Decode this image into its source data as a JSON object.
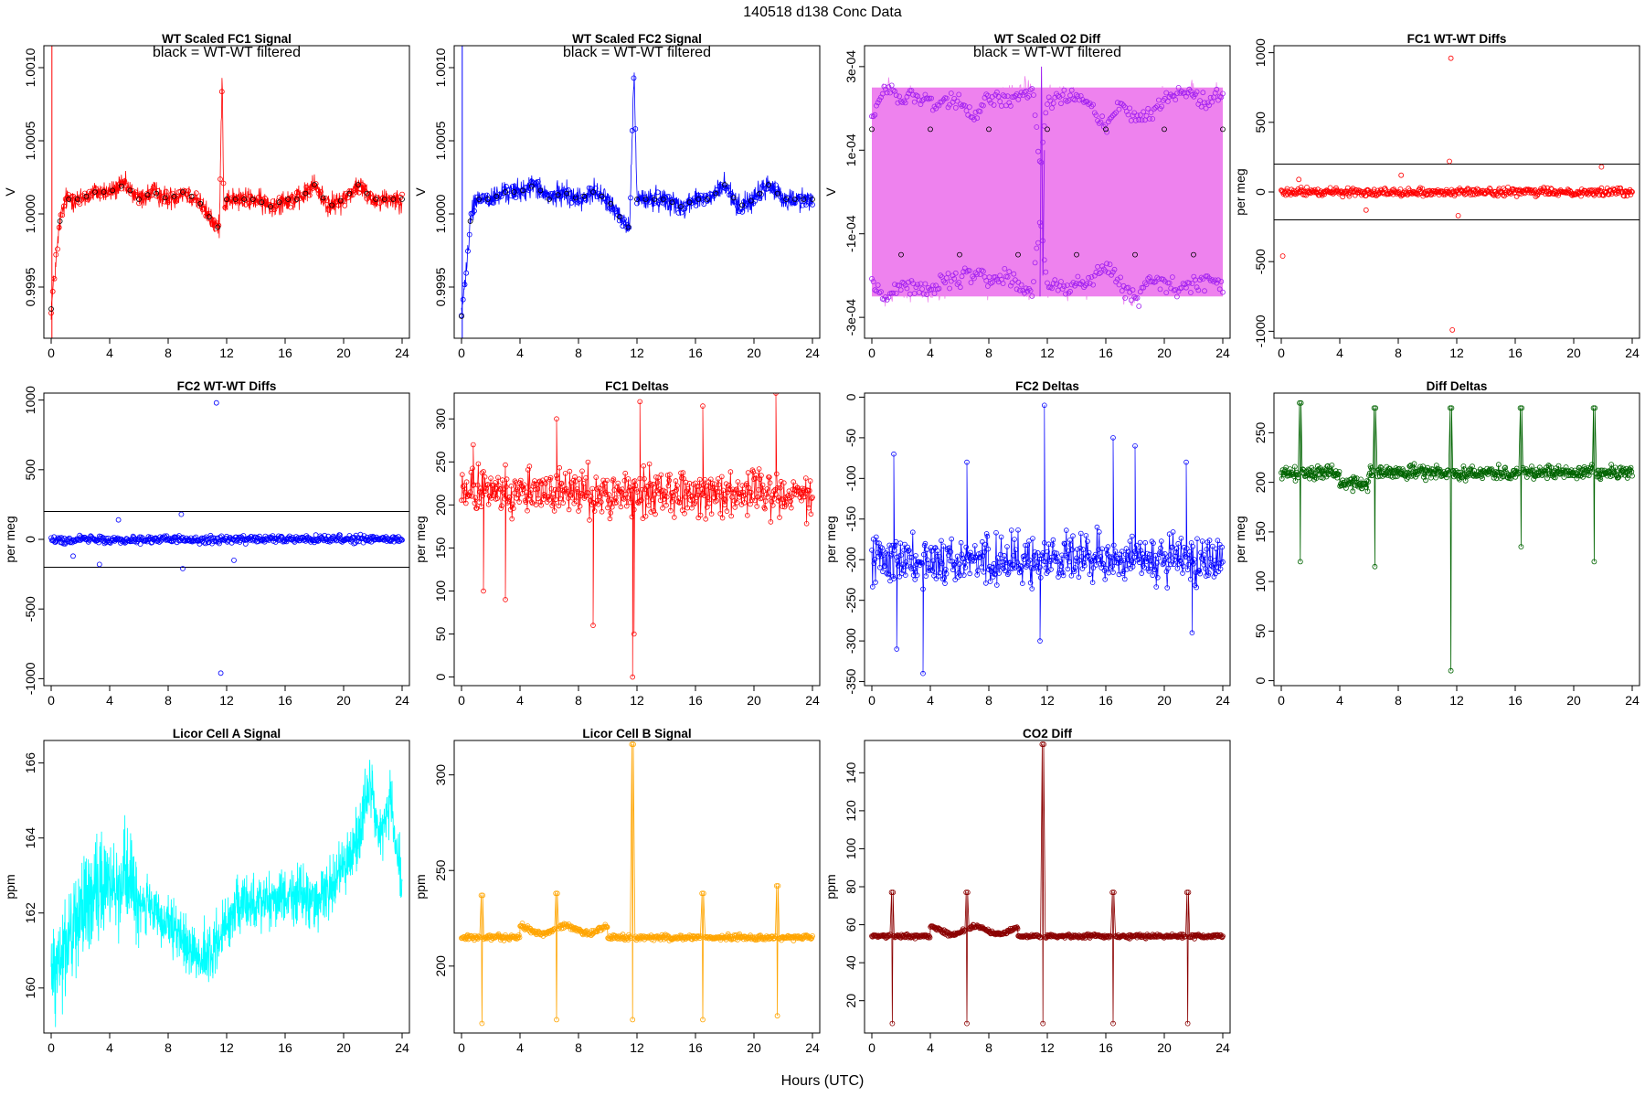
{
  "page_title": "140518   d138   Conc Data",
  "x_axis_label": "Hours (UTC)",
  "colors": {
    "fc1": "#ff0000",
    "fc2": "#0000ff",
    "o2_band": "#ee82ee",
    "o2_points": "#a020f0",
    "diff": "#006400",
    "licor_a": "#00ffff",
    "licor_b": "#ffa500",
    "co2": "#8b0000",
    "filtered": "#000000"
  },
  "chart_data": [
    {
      "id": "p1",
      "type": "line",
      "title": "WT Scaled FC1 Signal",
      "annotation": "black = WT-WT filtered",
      "ylabel": "V",
      "xlim": [
        0,
        24
      ],
      "ylim": [
        0.99915,
        1.00115
      ],
      "xticks": [
        0,
        4,
        8,
        12,
        16,
        20,
        24
      ],
      "yticks": [
        0.9995,
        1.0,
        1.0005,
        1.001
      ],
      "yticklabels": [
        "0.9995",
        "1.0000",
        "1.0005",
        "1.0010"
      ],
      "series": [
        {
          "color_key": "fc1",
          "markers": "open-circle",
          "x": [
            0,
            0.3,
            0.6,
            1.0,
            2,
            3,
            4,
            5,
            6,
            7,
            8,
            9,
            10,
            11,
            11.5,
            11.7,
            11.8,
            12,
            13,
            14,
            15,
            16,
            17,
            18,
            19,
            20,
            21,
            22,
            23,
            24
          ],
          "y": [
            0.99935,
            0.99965,
            0.99995,
            1.0001,
            1.0001,
            1.00015,
            1.00015,
            1.0002,
            1.0001,
            1.00015,
            1.0001,
            1.00015,
            1.0001,
            0.99995,
            0.9999,
            1.001,
            1.00005,
            1.0001,
            1.0001,
            1.0001,
            1.00005,
            1.0001,
            1.0001,
            1.0002,
            1.00005,
            1.0001,
            1.0002,
            1.0001,
            1.0001,
            1.0001
          ],
          "spread": 0.00012
        }
      ]
    },
    {
      "id": "p2",
      "type": "line",
      "title": "WT Scaled FC2 Signal",
      "annotation": "black = WT-WT filtered",
      "ylabel": "V",
      "xlim": [
        0,
        24
      ],
      "ylim": [
        0.99915,
        1.00115
      ],
      "xticks": [
        0,
        4,
        8,
        12,
        16,
        20,
        24
      ],
      "yticks": [
        0.9995,
        1.0,
        1.0005,
        1.001
      ],
      "yticklabels": [
        "0.9995",
        "1.0000",
        "1.0005",
        "1.0010"
      ],
      "series": [
        {
          "color_key": "fc2",
          "markers": "open-circle",
          "x": [
            0,
            0.3,
            0.6,
            1.0,
            2,
            3,
            4,
            5,
            6,
            7,
            8,
            9,
            10,
            11,
            11.5,
            11.8,
            12,
            13,
            14,
            15,
            16,
            17,
            18,
            19,
            20,
            21,
            22,
            23,
            24
          ],
          "y": [
            0.9993,
            0.9996,
            0.99995,
            1.0001,
            1.0001,
            1.00015,
            1.00015,
            1.0002,
            1.0001,
            1.00015,
            1.0001,
            1.00015,
            1.0001,
            0.99995,
            0.9999,
            1.001,
            1.0001,
            1.0001,
            1.0001,
            1.00005,
            1.0001,
            1.0001,
            1.0002,
            1.00005,
            1.0001,
            1.0002,
            1.0001,
            1.0001,
            1.0001
          ],
          "spread": 0.00012
        }
      ]
    },
    {
      "id": "p3",
      "type": "scatter",
      "title": "WT Scaled O2 Diff",
      "annotation": "black = WT-WT filtered",
      "ylabel": "V",
      "xlim": [
        0,
        24
      ],
      "ylim": [
        -0.00035,
        0.00035
      ],
      "xticks": [
        0,
        4,
        8,
        12,
        16,
        20,
        24
      ],
      "yticks": [
        -0.0003,
        -0.0001,
        0.0001,
        0.0003
      ],
      "yticklabels": [
        "-3e-04",
        "-1e-04",
        "1e-04",
        "3e-04"
      ],
      "band": {
        "color_key": "o2_band",
        "low": -0.00025,
        "high": 0.00025
      },
      "series": [
        {
          "name": "upper",
          "color_key": "o2_points",
          "x": [
            0,
            1,
            2,
            3,
            4,
            5,
            6,
            7,
            8,
            9,
            10,
            11,
            11.5,
            12,
            13,
            14,
            15,
            16,
            17,
            18,
            19,
            20,
            21,
            22,
            23,
            24
          ],
          "y": [
            0.00017,
            0.00025,
            0.00022,
            0.00023,
            0.00021,
            0.00021,
            0.00022,
            0.00017,
            0.00023,
            0.00022,
            0.00023,
            0.00025,
            6e-05,
            0.00022,
            0.00023,
            0.00023,
            0.00021,
            0.00015,
            0.00022,
            0.00017,
            0.00018,
            0.00022,
            0.00023,
            0.00024,
            0.00021,
            0.00023
          ],
          "spread": 3e-05
        },
        {
          "name": "lower",
          "color_key": "o2_points",
          "x": [
            0,
            1,
            2,
            3,
            4,
            5,
            6,
            7,
            8,
            9,
            10,
            11,
            11.5,
            12,
            13,
            14,
            15,
            16,
            17,
            18,
            19,
            20,
            21,
            22,
            23,
            24
          ],
          "y": [
            -0.00022,
            -0.00025,
            -0.00022,
            -0.00023,
            -0.00023,
            -0.00022,
            -0.00021,
            -0.00019,
            -0.00022,
            -0.0002,
            -0.00022,
            -0.00024,
            -6e-05,
            -0.00022,
            -0.00023,
            -0.00022,
            -0.00021,
            -0.00018,
            -0.00022,
            -0.00026,
            -0.00021,
            -0.00022,
            -0.00023,
            -0.00022,
            -0.00021,
            -0.00023
          ],
          "spread": 3e-05
        }
      ]
    },
    {
      "id": "p4",
      "type": "scatter",
      "title": "FC1 WT-WT Diffs",
      "ylabel": "per meg",
      "xlim": [
        0,
        24
      ],
      "ylim": [
        -1050,
        1050
      ],
      "xticks": [
        0,
        4,
        8,
        12,
        16,
        20,
        24
      ],
      "yticks": [
        -1000,
        -500,
        0,
        500,
        1000
      ],
      "yticklabels": [
        "-1000",
        "-500",
        "0",
        "500",
        "1000"
      ],
      "hlines": [
        200,
        -200
      ],
      "series": [
        {
          "color_key": "fc1",
          "base": 0,
          "spread": 40
        }
      ],
      "outliers": {
        "x": [
          0.1,
          11.6,
          11.7,
          11.5,
          12.1,
          8.2,
          21.9,
          1.2,
          5.8
        ],
        "y": [
          -460,
          960,
          -990,
          220,
          -170,
          120,
          180,
          90,
          -130
        ]
      }
    },
    {
      "id": "p5",
      "type": "scatter",
      "title": "FC2 WT-WT Diffs",
      "ylabel": "per meg",
      "xlim": [
        0,
        24
      ],
      "ylim": [
        -1050,
        1050
      ],
      "xticks": [
        0,
        4,
        8,
        12,
        16,
        20,
        24
      ],
      "yticks": [
        -1000,
        -500,
        0,
        500,
        1000
      ],
      "yticklabels": [
        "-1000",
        "-500",
        "0",
        "500",
        "1000"
      ],
      "hlines": [
        200,
        -200
      ],
      "series": [
        {
          "color_key": "fc2",
          "base": 0,
          "spread": 40
        }
      ],
      "outliers": {
        "x": [
          11.3,
          11.6,
          9.0,
          8.9,
          12.5,
          4.6,
          3.3,
          1.5
        ],
        "y": [
          980,
          -960,
          -210,
          180,
          -150,
          140,
          -180,
          -120
        ]
      }
    },
    {
      "id": "p6",
      "type": "line",
      "title": "FC1 Deltas",
      "ylabel": "per meg",
      "xlim": [
        0,
        24
      ],
      "ylim": [
        -10,
        330
      ],
      "xticks": [
        0,
        4,
        8,
        12,
        16,
        20,
        24
      ],
      "yticks": [
        0,
        50,
        100,
        150,
        200,
        250,
        300
      ],
      "yticklabels": [
        "0",
        "50",
        "100",
        "150",
        "200",
        "250",
        "300"
      ],
      "series": [
        {
          "color_key": "fc1",
          "base": 215,
          "spread": 40,
          "spikes": {
            "x": [
              0.8,
              1.5,
              3.0,
              6.5,
              9.0,
              11.7,
              11.8,
              12.2,
              16.5,
              21.5
            ],
            "y": [
              270,
              100,
              90,
              300,
              60,
              0,
              50,
              320,
              315,
              330
            ]
          }
        }
      ]
    },
    {
      "id": "p7",
      "type": "line",
      "title": "FC2 Deltas",
      "ylabel": "per meg",
      "xlim": [
        0,
        24
      ],
      "ylim": [
        -355,
        5
      ],
      "xticks": [
        0,
        4,
        8,
        12,
        16,
        20,
        24
      ],
      "yticks": [
        -350,
        -300,
        -250,
        -200,
        -150,
        -100,
        -50,
        0
      ],
      "yticklabels": [
        "-350",
        "-300",
        "-250",
        "-200",
        "-150",
        "-100",
        "-50",
        "0"
      ],
      "series": [
        {
          "color_key": "fc2",
          "base": -200,
          "spread": 45,
          "spikes": {
            "x": [
              1.5,
              1.7,
              3.5,
              6.5,
              11.5,
              11.8,
              16.5,
              18.0,
              21.5,
              21.9
            ],
            "y": [
              -70,
              -310,
              -340,
              -80,
              -300,
              -10,
              -50,
              -60,
              -80,
              -290
            ]
          }
        }
      ]
    },
    {
      "id": "p8",
      "type": "line",
      "title": "Diff Deltas",
      "ylabel": "per meg",
      "xlim": [
        0,
        24
      ],
      "ylim": [
        -5,
        290
      ],
      "xticks": [
        0,
        4,
        8,
        12,
        16,
        20,
        24
      ],
      "yticks": [
        0,
        50,
        100,
        150,
        200,
        250
      ],
      "yticklabels": [
        "0",
        "50",
        "100",
        "150",
        "200",
        "250"
      ],
      "series": [
        {
          "color_key": "diff",
          "base": 210,
          "spread": 10,
          "spikes": [
            {
              "x": 1.3,
              "hi": 280,
              "lo": 120
            },
            {
              "x": 6.4,
              "hi": 275,
              "lo": 115
            },
            {
              "x": 11.6,
              "hi": 275,
              "lo": 10
            },
            {
              "x": 16.4,
              "hi": 275,
              "lo": 135
            },
            {
              "x": 21.4,
              "hi": 275,
              "lo": 120
            }
          ]
        }
      ]
    },
    {
      "id": "p9",
      "type": "line",
      "title": "Licor Cell A Signal",
      "ylabel": "ppm",
      "xlim": [
        0,
        24
      ],
      "ylim": [
        158.8,
        166.6
      ],
      "xticks": [
        0,
        4,
        8,
        12,
        16,
        20,
        24
      ],
      "yticks": [
        160,
        162,
        164,
        166
      ],
      "yticklabels": [
        "160",
        "162",
        "164",
        "166"
      ],
      "series": [
        {
          "color_key": "licor_a",
          "spread": 1.4,
          "x": [
            0,
            1,
            2,
            3,
            4,
            5,
            6,
            7,
            8,
            9,
            10,
            11,
            12,
            13,
            14,
            15,
            16,
            17,
            18,
            19,
            20,
            21,
            21.8,
            22.5,
            23.2,
            24
          ],
          "y": [
            160.2,
            161.2,
            162.0,
            162.5,
            162.8,
            163.0,
            162.4,
            162.0,
            161.6,
            161.3,
            160.8,
            160.9,
            161.8,
            162.2,
            162.3,
            162.4,
            162.4,
            162.5,
            162.3,
            162.6,
            163.2,
            164.0,
            165.5,
            164.0,
            165.0,
            162.6
          ]
        }
      ]
    },
    {
      "id": "p10",
      "type": "line",
      "title": "Licor Cell B Signal",
      "ylabel": "ppm",
      "xlim": [
        0,
        24
      ],
      "ylim": [
        165,
        318
      ],
      "xticks": [
        0,
        4,
        8,
        12,
        16,
        20,
        24
      ],
      "yticks": [
        200,
        250,
        300
      ],
      "yticklabels": [
        "200",
        "250",
        "300"
      ],
      "series": [
        {
          "color_key": "licor_b",
          "base": 215,
          "spread": 2,
          "spikes": [
            {
              "x": 1.4,
              "hi": 237,
              "lo": 170
            },
            {
              "x": 6.5,
              "hi": 238,
              "lo": 172
            },
            {
              "x": 11.7,
              "hi": 316,
              "lo": 172
            },
            {
              "x": 16.5,
              "hi": 238,
              "lo": 172
            },
            {
              "x": 21.6,
              "hi": 242,
              "lo": 174
            }
          ]
        }
      ]
    },
    {
      "id": "p11",
      "type": "line",
      "title": "CO2 Diff",
      "ylabel": "ppm",
      "xlim": [
        0,
        24
      ],
      "ylim": [
        3,
        157
      ],
      "xticks": [
        0,
        4,
        8,
        12,
        16,
        20,
        24
      ],
      "yticks": [
        20,
        40,
        60,
        80,
        100,
        120,
        140
      ],
      "yticklabels": [
        "20",
        "40",
        "60",
        "80",
        "100",
        "120",
        "140"
      ],
      "series": [
        {
          "color_key": "co2",
          "base": 54,
          "spread": 1.5,
          "spikes": [
            {
              "x": 1.4,
              "hi": 77,
              "lo": 8
            },
            {
              "x": 6.5,
              "hi": 77,
              "lo": 8
            },
            {
              "x": 11.7,
              "hi": 155,
              "lo": 8
            },
            {
              "x": 16.5,
              "hi": 77,
              "lo": 8
            },
            {
              "x": 21.6,
              "hi": 77,
              "lo": 8
            }
          ]
        }
      ]
    }
  ]
}
